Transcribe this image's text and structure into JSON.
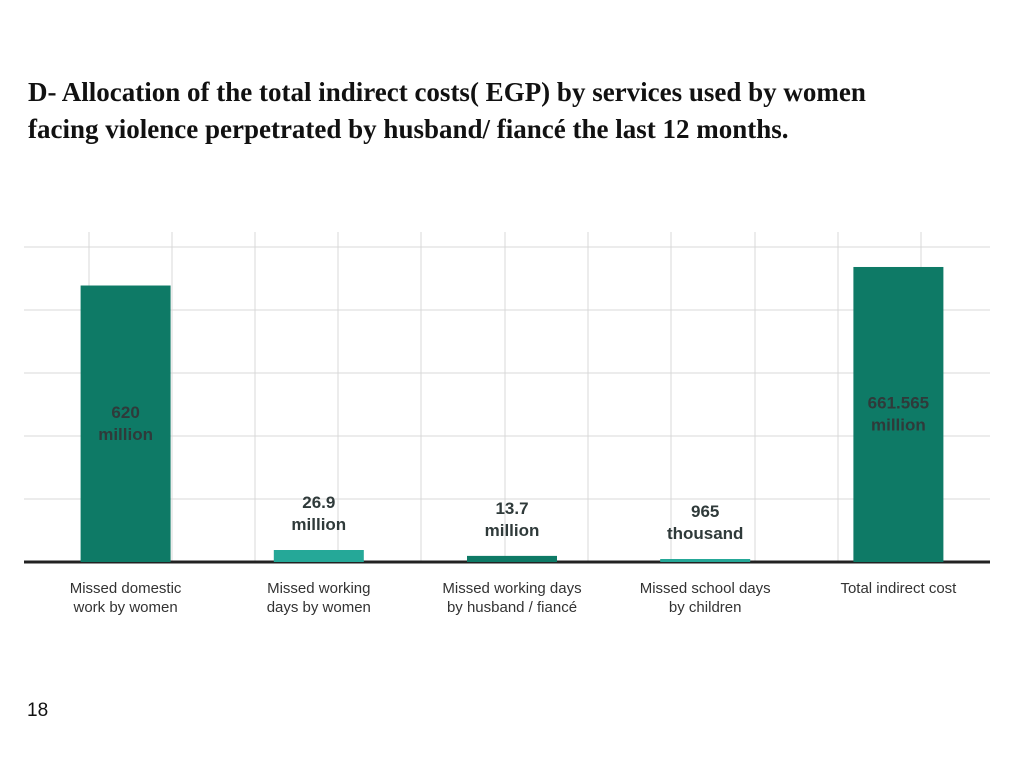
{
  "slide": {
    "title_line1": "D- Allocation of the total indirect costs( EGP) by services used by women",
    "title_line2": "facing violence perpetrated by husband/ fiancé  the last 12 months.",
    "page_number": "18"
  },
  "colors": {
    "dark_teal": "#0e7a66",
    "light_teal": "#25a898",
    "grid": "#d9d9d9",
    "baseline": "#222222",
    "value_text": "#2f3a3a",
    "category_text": "#333333"
  },
  "chart_data": {
    "type": "bar",
    "title": "",
    "xlabel": "",
    "ylabel": "",
    "unit": "EGP",
    "ylim": [
      0,
      740
    ],
    "grid": true,
    "categories": [
      [
        "Missed domestic",
        "work by women"
      ],
      [
        "Missed working",
        "days by women"
      ],
      [
        "Missed working days",
        "by husband / fiancé"
      ],
      [
        "Missed school days",
        "by children"
      ],
      [
        "Total indirect cost"
      ]
    ],
    "values": [
      620,
      26.9,
      13.7,
      0.965,
      661.565
    ],
    "value_units": "million EGP",
    "bar_colors": [
      "dark_teal",
      "light_teal",
      "dark_teal",
      "light_teal",
      "dark_teal"
    ],
    "data_labels": [
      [
        "620",
        "million"
      ],
      [
        "26.9",
        "million"
      ],
      [
        "13.7",
        "million"
      ],
      [
        "965",
        "thousand"
      ],
      [
        "661.565",
        "million"
      ]
    ],
    "label_position": [
      "inside",
      "above",
      "above",
      "above",
      "inside"
    ]
  }
}
